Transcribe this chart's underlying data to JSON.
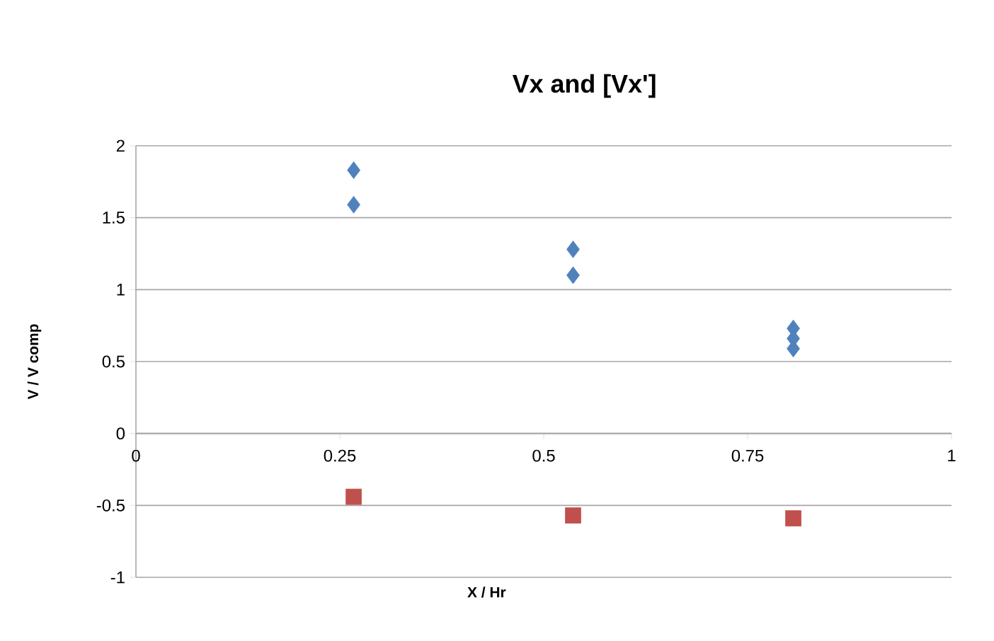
{
  "chart_data": {
    "type": "scatter",
    "title": "Vx and [Vx']",
    "xlabel": "X / Hr",
    "ylabel": "V / V comp",
    "xlim": [
      0,
      1
    ],
    "xticks": [
      0,
      0.25,
      0.5,
      0.75,
      1
    ],
    "ylim": [
      -1,
      2
    ],
    "yticks": [
      -1,
      -0.5,
      0,
      0.5,
      1,
      1.5,
      2
    ],
    "grid": "y",
    "series": [
      {
        "color": "#4f81bd",
        "marker": "diamond",
        "x": [
          0.267,
          0.267,
          0.536,
          0.536,
          0.806,
          0.806,
          0.806
        ],
        "values": [
          1.83,
          1.59,
          1.28,
          1.1,
          0.73,
          0.66,
          0.59
        ]
      },
      {
        "color": "#c0504d",
        "marker": "square",
        "x": [
          0.267,
          0.536,
          0.806
        ],
        "values": [
          -0.44,
          -0.57,
          -0.59
        ]
      }
    ]
  }
}
